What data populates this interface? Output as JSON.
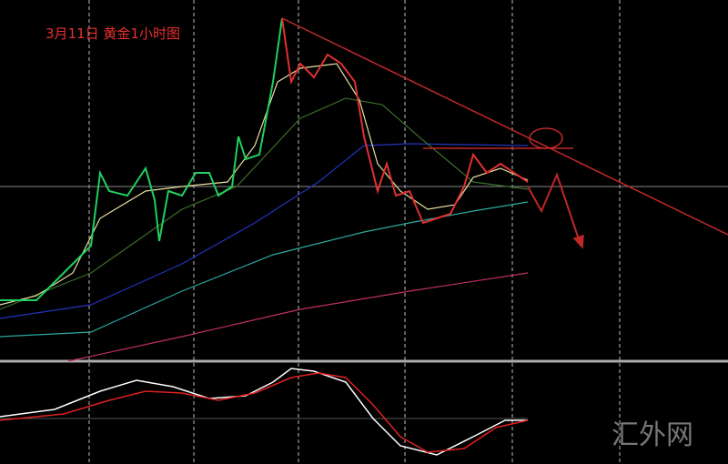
{
  "header": {
    "title": "3月11日  黄金1小时图"
  },
  "watermark": {
    "text": "汇外网"
  }
}
